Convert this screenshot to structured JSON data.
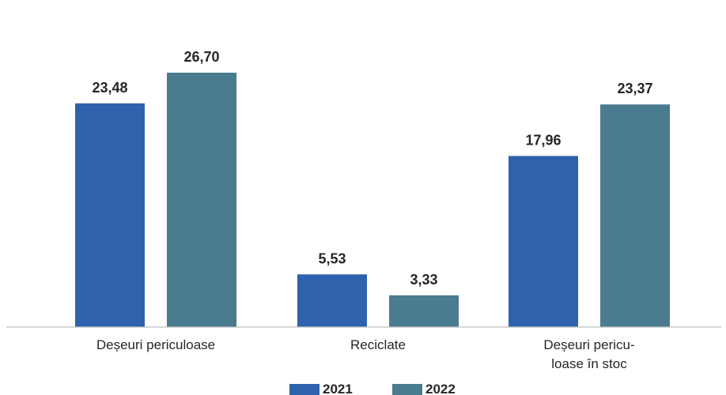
{
  "chart_data": {
    "type": "bar",
    "categories": [
      [
        "Deșeuri periculoase"
      ],
      [
        "Reciclate"
      ],
      [
        "Deșeuri pericu-",
        "loase în stoc"
      ]
    ],
    "series": [
      {
        "name": "2021",
        "values": [
          23.48,
          5.53,
          17.96
        ],
        "labels": [
          "23,48",
          "5,53",
          "17,96"
        ],
        "color": "#2e62ad"
      },
      {
        "name": "2022",
        "values": [
          26.7,
          3.33,
          23.37
        ],
        "labels": [
          "26,70",
          "3,33",
          "23,37"
        ],
        "color": "#4a7b8f"
      }
    ],
    "ylim": [
      0,
      30
    ],
    "grid": false,
    "legend": "bottom-center",
    "title": "",
    "xlabel": "",
    "ylabel": "",
    "axis_color": "#bfbfbf"
  }
}
